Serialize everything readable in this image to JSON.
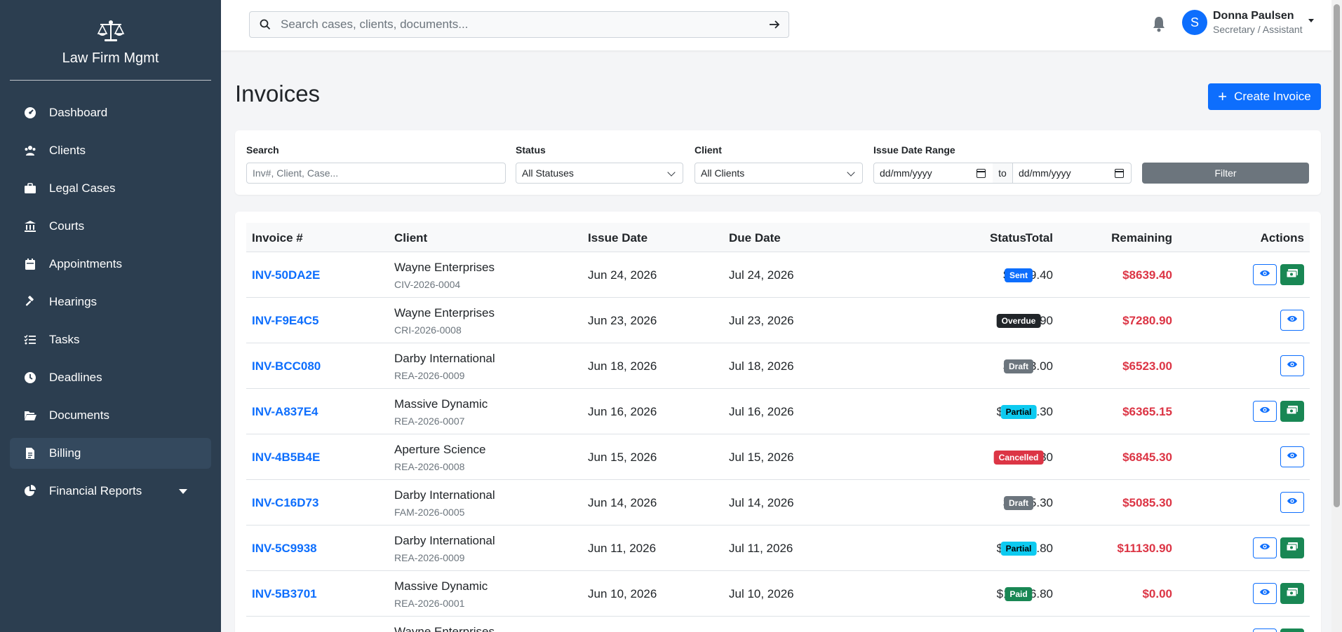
{
  "app": {
    "name": "Law Firm Mgmt"
  },
  "sidebar": {
    "items": [
      {
        "label": "Dashboard",
        "icon": "gauge-icon",
        "active": false
      },
      {
        "label": "Clients",
        "icon": "users-icon",
        "active": false
      },
      {
        "label": "Legal Cases",
        "icon": "briefcase-icon",
        "active": false
      },
      {
        "label": "Courts",
        "icon": "courthouse-icon",
        "active": false
      },
      {
        "label": "Appointments",
        "icon": "calendar-icon",
        "active": false
      },
      {
        "label": "Hearings",
        "icon": "gavel-icon",
        "active": false
      },
      {
        "label": "Tasks",
        "icon": "tasks-icon",
        "active": false
      },
      {
        "label": "Deadlines",
        "icon": "clock-icon",
        "active": false
      },
      {
        "label": "Documents",
        "icon": "folder-open-icon",
        "active": false
      },
      {
        "label": "Billing",
        "icon": "invoice-icon",
        "active": true
      },
      {
        "label": "Financial Reports",
        "icon": "pie-chart-icon",
        "active": false
      }
    ]
  },
  "topbar": {
    "search_placeholder": "Search cases, clients, documents...",
    "user": {
      "initial": "S",
      "name": "Donna Paulsen",
      "role": "Secretary / Assistant"
    }
  },
  "page": {
    "title": "Invoices",
    "create_label": "Create Invoice"
  },
  "filters": {
    "search_label": "Search",
    "search_placeholder": "Inv#, Client, Case...",
    "status_label": "Status",
    "status_value": "All Statuses",
    "client_label": "Client",
    "client_value": "All Clients",
    "date_label": "Issue Date Range",
    "date_from_placeholder": "dd/mm/yyyy",
    "date_to_label": "to",
    "date_to_placeholder": "dd/mm/yyyy",
    "filter_label": "Filter"
  },
  "table": {
    "headers": [
      "Invoice #",
      "Client",
      "Issue Date",
      "Due Date",
      "Total",
      "Remaining",
      "Status",
      "Actions"
    ],
    "rows": [
      {
        "invoice": "INV-50DA2E",
        "client": "Wayne Enterprises",
        "case": "CIV-2026-0004",
        "issue": "Jun 24, 2026",
        "due": "Jul 24, 2026",
        "total": "$8639.40",
        "remaining": "$8639.40",
        "status": "Sent",
        "status_color": "#0d6efd",
        "status_text_color": "#ffffff",
        "pay": true
      },
      {
        "invoice": "INV-F9E4C5",
        "client": "Wayne Enterprises",
        "case": "CRI-2026-0008",
        "issue": "Jun 23, 2026",
        "due": "Jul 23, 2026",
        "total": "$7280.90",
        "remaining": "$7280.90",
        "status": "Overdue",
        "status_color": "#212529",
        "status_text_color": "#ffffff",
        "pay": false
      },
      {
        "invoice": "INV-BCC080",
        "client": "Darby International",
        "case": "REA-2026-0009",
        "issue": "Jun 18, 2026",
        "due": "Jul 18, 2026",
        "total": "$6523.00",
        "remaining": "$6523.00",
        "status": "Draft",
        "status_color": "#6c757d",
        "status_text_color": "#ffffff",
        "pay": false
      },
      {
        "invoice": "INV-A837E4",
        "client": "Massive Dynamic",
        "case": "REA-2026-0007",
        "issue": "Jun 16, 2026",
        "due": "Jul 16, 2026",
        "total": "$12730.30",
        "remaining": "$6365.15",
        "status": "Partial",
        "status_color": "#0dcaf0",
        "status_text_color": "#000000",
        "pay": true
      },
      {
        "invoice": "INV-4B5B4E",
        "client": "Aperture Science",
        "case": "REA-2026-0008",
        "issue": "Jun 15, 2026",
        "due": "Jul 15, 2026",
        "total": "$6845.30",
        "remaining": "$6845.30",
        "status": "Cancelled",
        "status_color": "#dc3545",
        "status_text_color": "#ffffff",
        "pay": false
      },
      {
        "invoice": "INV-C16D73",
        "client": "Darby International",
        "case": "FAM-2026-0005",
        "issue": "Jun 14, 2026",
        "due": "Jul 14, 2026",
        "total": "$5085.30",
        "remaining": "$5085.30",
        "status": "Draft",
        "status_color": "#6c757d",
        "status_text_color": "#ffffff",
        "pay": false
      },
      {
        "invoice": "INV-5C9938",
        "client": "Darby International",
        "case": "REA-2026-0009",
        "issue": "Jun 11, 2026",
        "due": "Jul 11, 2026",
        "total": "$22261.80",
        "remaining": "$11130.90",
        "status": "Partial",
        "status_color": "#0dcaf0",
        "status_text_color": "#000000",
        "pay": true
      },
      {
        "invoice": "INV-5B3701",
        "client": "Massive Dynamic",
        "case": "REA-2026-0001",
        "issue": "Jun 10, 2026",
        "due": "Jul 10, 2026",
        "total": "$17366.80",
        "remaining": "$0.00",
        "status": "Paid",
        "status_color": "#198754",
        "status_text_color": "#ffffff",
        "pay": true
      },
      {
        "invoice": "",
        "client": "Wayne Enterprises",
        "case": "",
        "issue": "",
        "due": "",
        "total": "",
        "remaining": "",
        "status": "",
        "status_color": "#ffffff",
        "status_text_color": "#ffffff",
        "pay": true
      }
    ]
  }
}
